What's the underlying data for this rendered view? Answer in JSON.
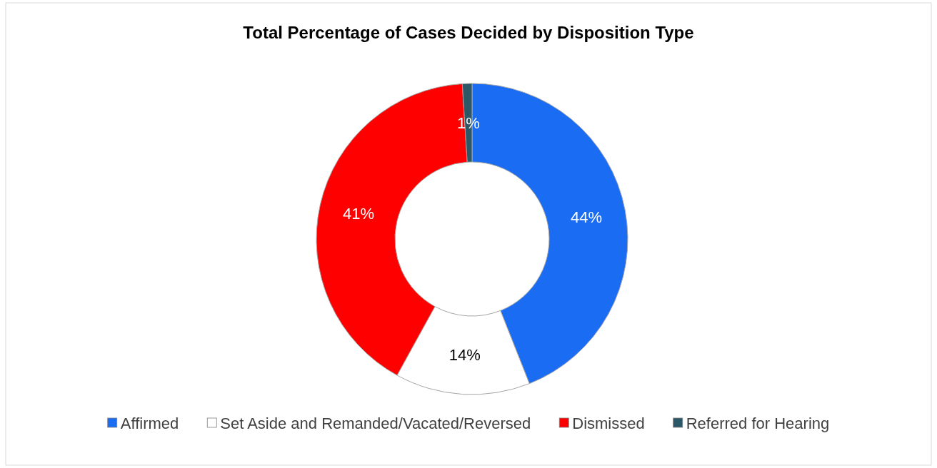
{
  "chart_data": {
    "type": "donut",
    "title": "Total Percentage of Cases Decided by Disposition Type",
    "categories": [
      "Affirmed",
      "Set Aside and Remanded/Vacated/Reversed",
      "Dismissed",
      "Referred for Hearing"
    ],
    "values": [
      44,
      14,
      41,
      1
    ],
    "colors": [
      "#1a6cf2",
      "#ffffff",
      "#fe0000",
      "#2b5766"
    ],
    "value_labels": [
      "44%",
      "14%",
      "41%",
      "1%"
    ],
    "legend": "bottom"
  }
}
